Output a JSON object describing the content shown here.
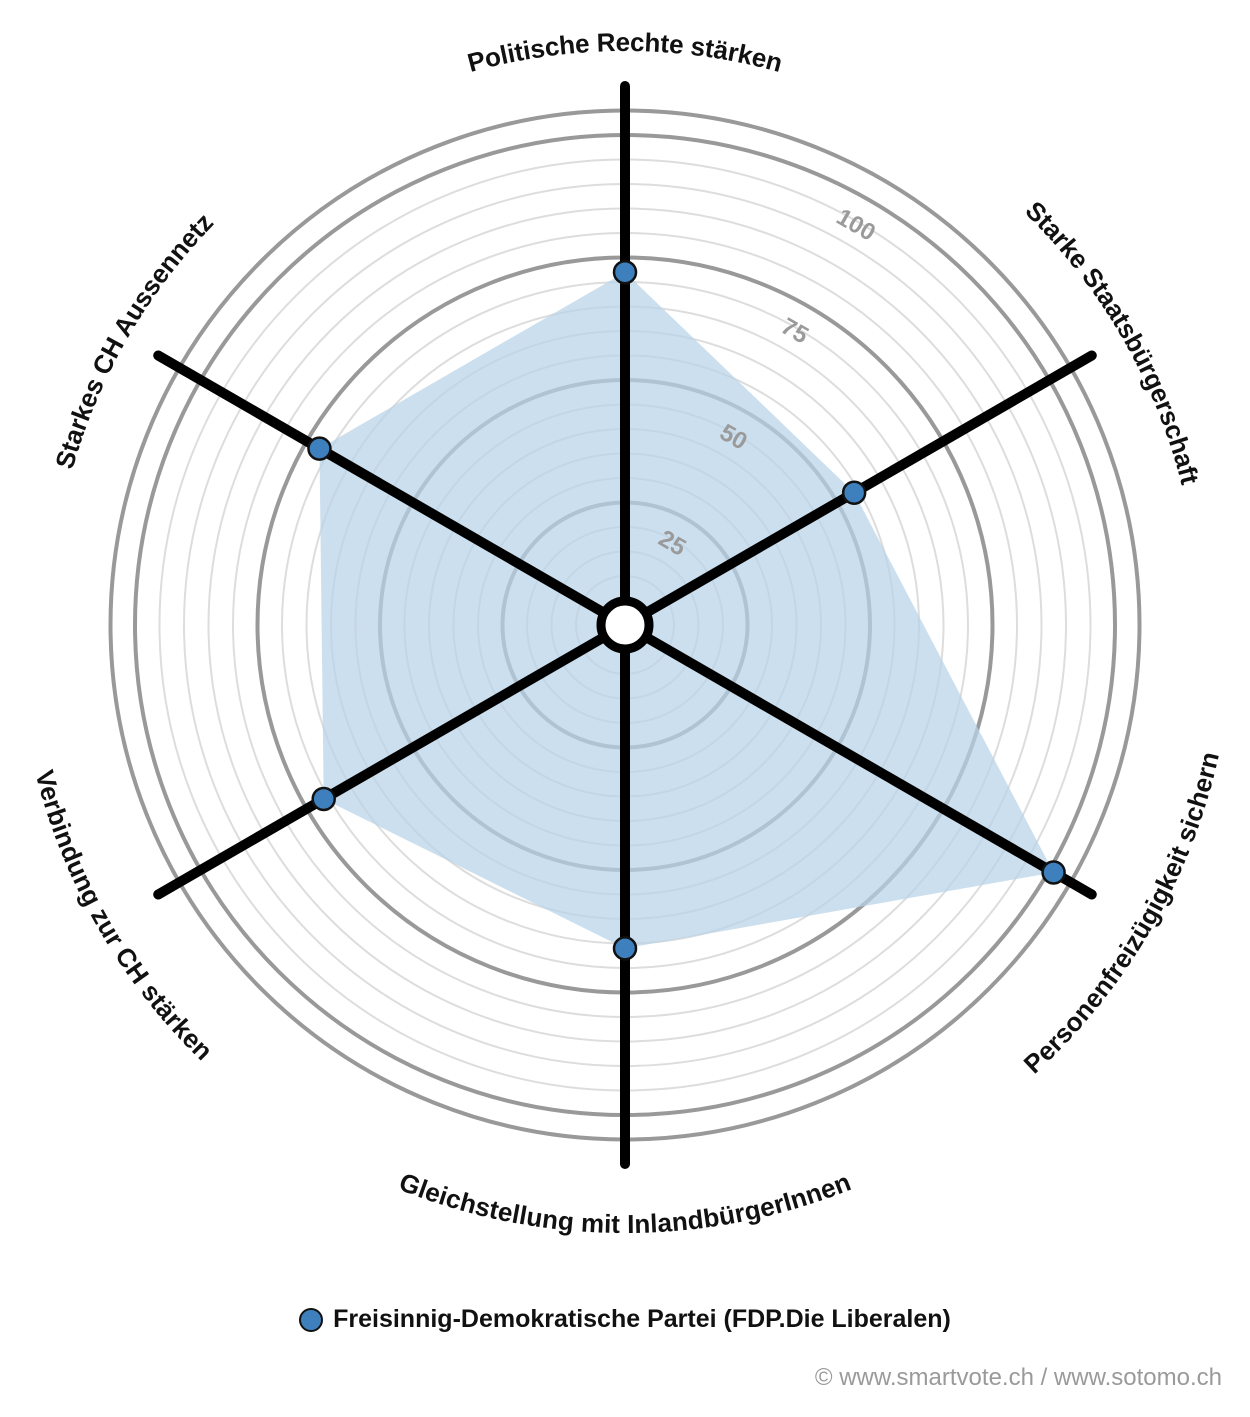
{
  "chart_data": {
    "type": "radar",
    "axes": [
      "Politische Rechte stärken",
      "Starke Staatsbürgerschaft",
      "Personenfreizügigkeit sichern",
      "Gleichstellung mit InlandbürgerInnen",
      "Verbindung zur CH stärken",
      "Starkes CH Aussennetz"
    ],
    "series": [
      {
        "name": "Freisinnig-Demokratische Partei (FDP.Die Liberalen)",
        "values": [
          72,
          54,
          101,
          66,
          71,
          72
        ]
      }
    ],
    "r_ticks": [
      "25",
      "50",
      "75",
      "100"
    ],
    "r_max": 105,
    "colors": {
      "fill": "#b8d3e8",
      "point": "#3d80bd",
      "axis": "#000000",
      "major_ring": "#999999",
      "minor_ring": "#dddddd"
    }
  },
  "credit": "© www.smartvote.ch / www.sotomo.ch"
}
